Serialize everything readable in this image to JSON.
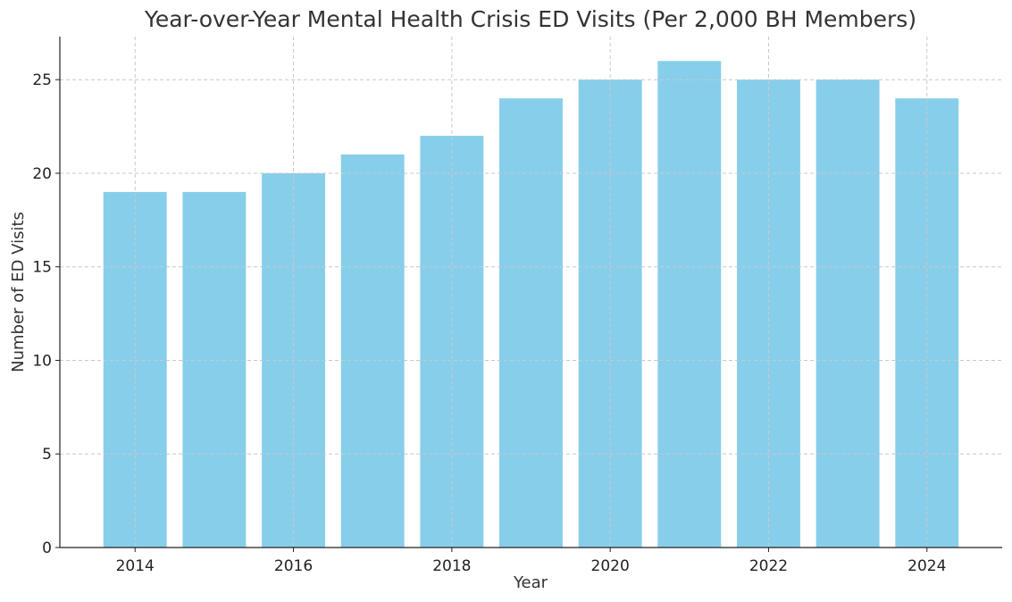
{
  "chart_data": {
    "type": "bar",
    "title": "Year-over-Year Mental Health Crisis ED Visits (Per 2,000 BH Members)",
    "xlabel": "Year",
    "ylabel": "Number of ED Visits",
    "categories": [
      2014,
      2015,
      2016,
      2017,
      2018,
      2019,
      2020,
      2021,
      2022,
      2023,
      2024
    ],
    "values": [
      19,
      19,
      20,
      21,
      22,
      24,
      25,
      26,
      25,
      25,
      24
    ],
    "xticks": [
      2014,
      2016,
      2018,
      2020,
      2022,
      2024
    ],
    "yticks": [
      0,
      5,
      10,
      15,
      20,
      25
    ],
    "xlim": [
      2013.05,
      2024.95
    ],
    "ylim": [
      0,
      27.3
    ],
    "grid": true,
    "bar_color": "#87CEEB"
  }
}
